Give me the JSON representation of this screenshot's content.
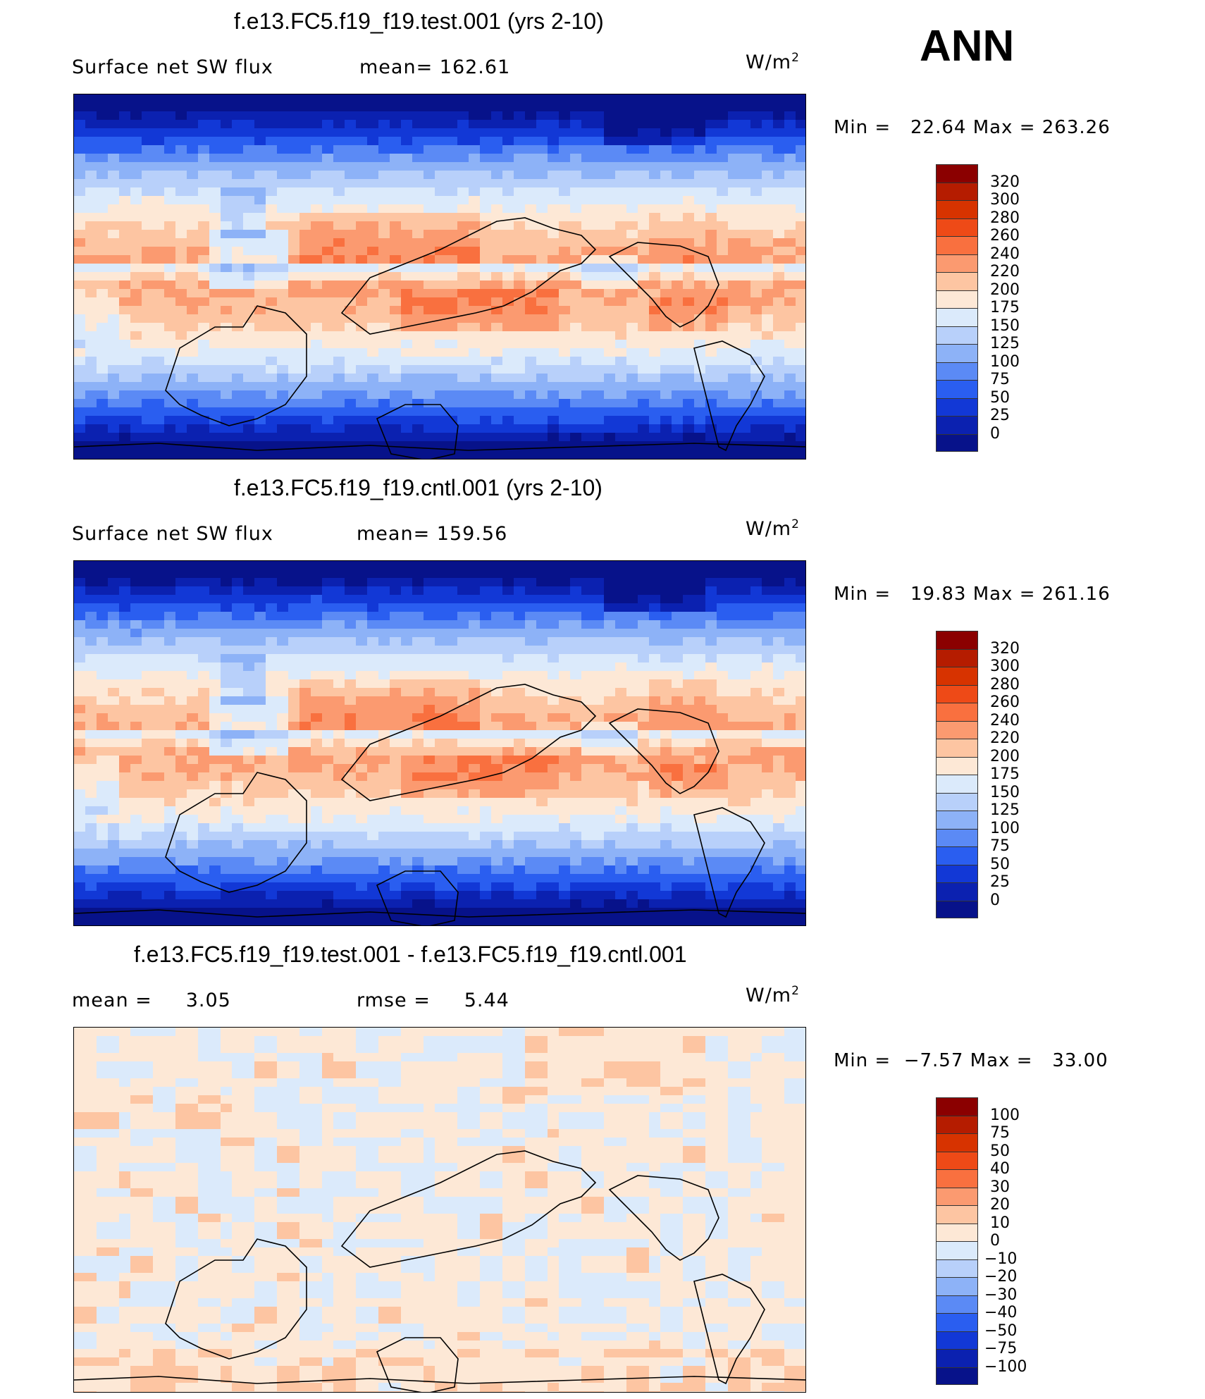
{
  "season": "ANN",
  "panels": [
    {
      "title": "f.e13.FC5.f19_f19.test.001 (yrs 2-10)",
      "left_label": "Surface net SW flux",
      "right_label": "mean= 162.61",
      "units": "W/m",
      "units_sup": "2",
      "min_label": "Min =",
      "min_value": "22.64",
      "max_label": "Max =",
      "max_value": "263.26",
      "colorbar": [
        "320",
        "300",
        "280",
        "260",
        "240",
        "220",
        "200",
        "175",
        "150",
        "125",
        "100",
        "75",
        "50",
        "25",
        "0"
      ],
      "colors": [
        "#8b0000",
        "#b51c00",
        "#d73300",
        "#ee4a17",
        "#f9703f",
        "#fb9a70",
        "#fdc5a2",
        "#fde8d6",
        "#dbeafb",
        "#b8d0fa",
        "#8db2f7",
        "#5b8af5",
        "#2a5ef0",
        "#1238d6",
        "#0b21b0",
        "#07128a"
      ],
      "field": "abs"
    },
    {
      "title": "f.e13.FC5.f19_f19.cntl.001 (yrs 2-10)",
      "left_label": "Surface net SW flux",
      "right_label": "mean= 159.56",
      "units": "W/m",
      "units_sup": "2",
      "min_label": "Min =",
      "min_value": "19.83",
      "max_label": "Max =",
      "max_value": "261.16",
      "colorbar": [
        "320",
        "300",
        "280",
        "260",
        "240",
        "220",
        "200",
        "175",
        "150",
        "125",
        "100",
        "75",
        "50",
        "25",
        "0"
      ],
      "colors": [
        "#8b0000",
        "#b51c00",
        "#d73300",
        "#ee4a17",
        "#f9703f",
        "#fb9a70",
        "#fdc5a2",
        "#fde8d6",
        "#dbeafb",
        "#b8d0fa",
        "#8db2f7",
        "#5b8af5",
        "#2a5ef0",
        "#1238d6",
        "#0b21b0",
        "#07128a"
      ],
      "field": "abs"
    },
    {
      "title": "f.e13.FC5.f19_f19.test.001 - f.e13.FC5.f19_f19.cntl.001",
      "left_label": "mean =     3.05",
      "right_label": "rmse =     5.44",
      "units": "W/m",
      "units_sup": "2",
      "min_label": "Min =",
      "min_value": "−7.57",
      "max_label": "Max =",
      "max_value": "33.00",
      "colorbar": [
        "100",
        "75",
        "50",
        "40",
        "30",
        "20",
        "10",
        "0",
        "−10",
        "−20",
        "−30",
        "−40",
        "−50",
        "−75",
        "−100"
      ],
      "colors": [
        "#8b0000",
        "#b51c00",
        "#d73300",
        "#ee4a17",
        "#f9703f",
        "#fb9a70",
        "#fdc5a2",
        "#fde8d6",
        "#dbeafb",
        "#b8d0fa",
        "#8db2f7",
        "#5b8af5",
        "#2a5ef0",
        "#1238d6",
        "#0b21b0",
        "#07128a"
      ],
      "field": "diff"
    }
  ]
}
